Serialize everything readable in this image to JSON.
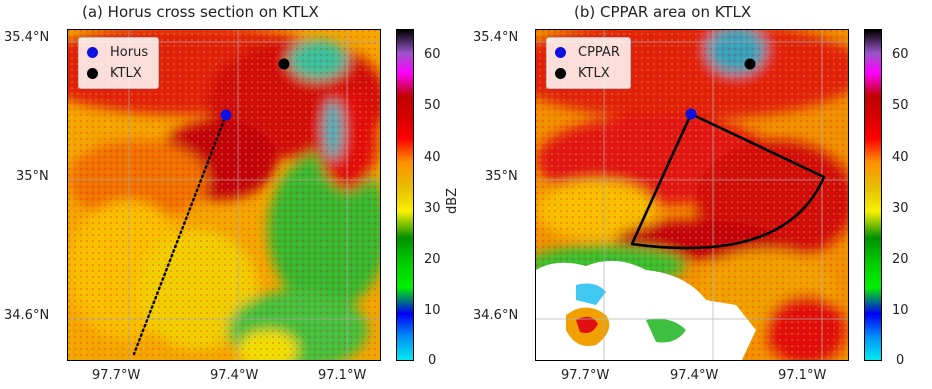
{
  "panels": [
    {
      "title": "(a) Horus cross section on KTLX",
      "legend": [
        {
          "label": "Horus",
          "color": "#1010e0"
        },
        {
          "label": "KTLX",
          "color": "#000000"
        }
      ],
      "y_ticks": [
        "35.4°N",
        "35°N",
        "34.6°N"
      ],
      "x_ticks": [
        "97.7°W",
        "97.4°W",
        "97.1°W"
      ]
    },
    {
      "title": "(b) CPPAR area on KTLX",
      "legend": [
        {
          "label": "CPPAR",
          "color": "#1010e0"
        },
        {
          "label": "KTLX",
          "color": "#000000"
        }
      ],
      "y_ticks": [
        "35.4°N",
        "35°N",
        "34.6°N"
      ],
      "x_ticks": [
        "97.7°W",
        "97.4°W",
        "97.1°W"
      ]
    }
  ],
  "colorbar": {
    "label": "dBZ",
    "ticks": [
      "60",
      "50",
      "40",
      "30",
      "20",
      "10",
      "0"
    ],
    "range": [
      0,
      65
    ]
  },
  "colors": {
    "horus_marker": "#1010e0",
    "ktlx_marker": "#000000",
    "high_reflectivity": "#e01010",
    "moderate_reflectivity": "#f8b000",
    "low_reflectivity": "#20c020"
  }
}
